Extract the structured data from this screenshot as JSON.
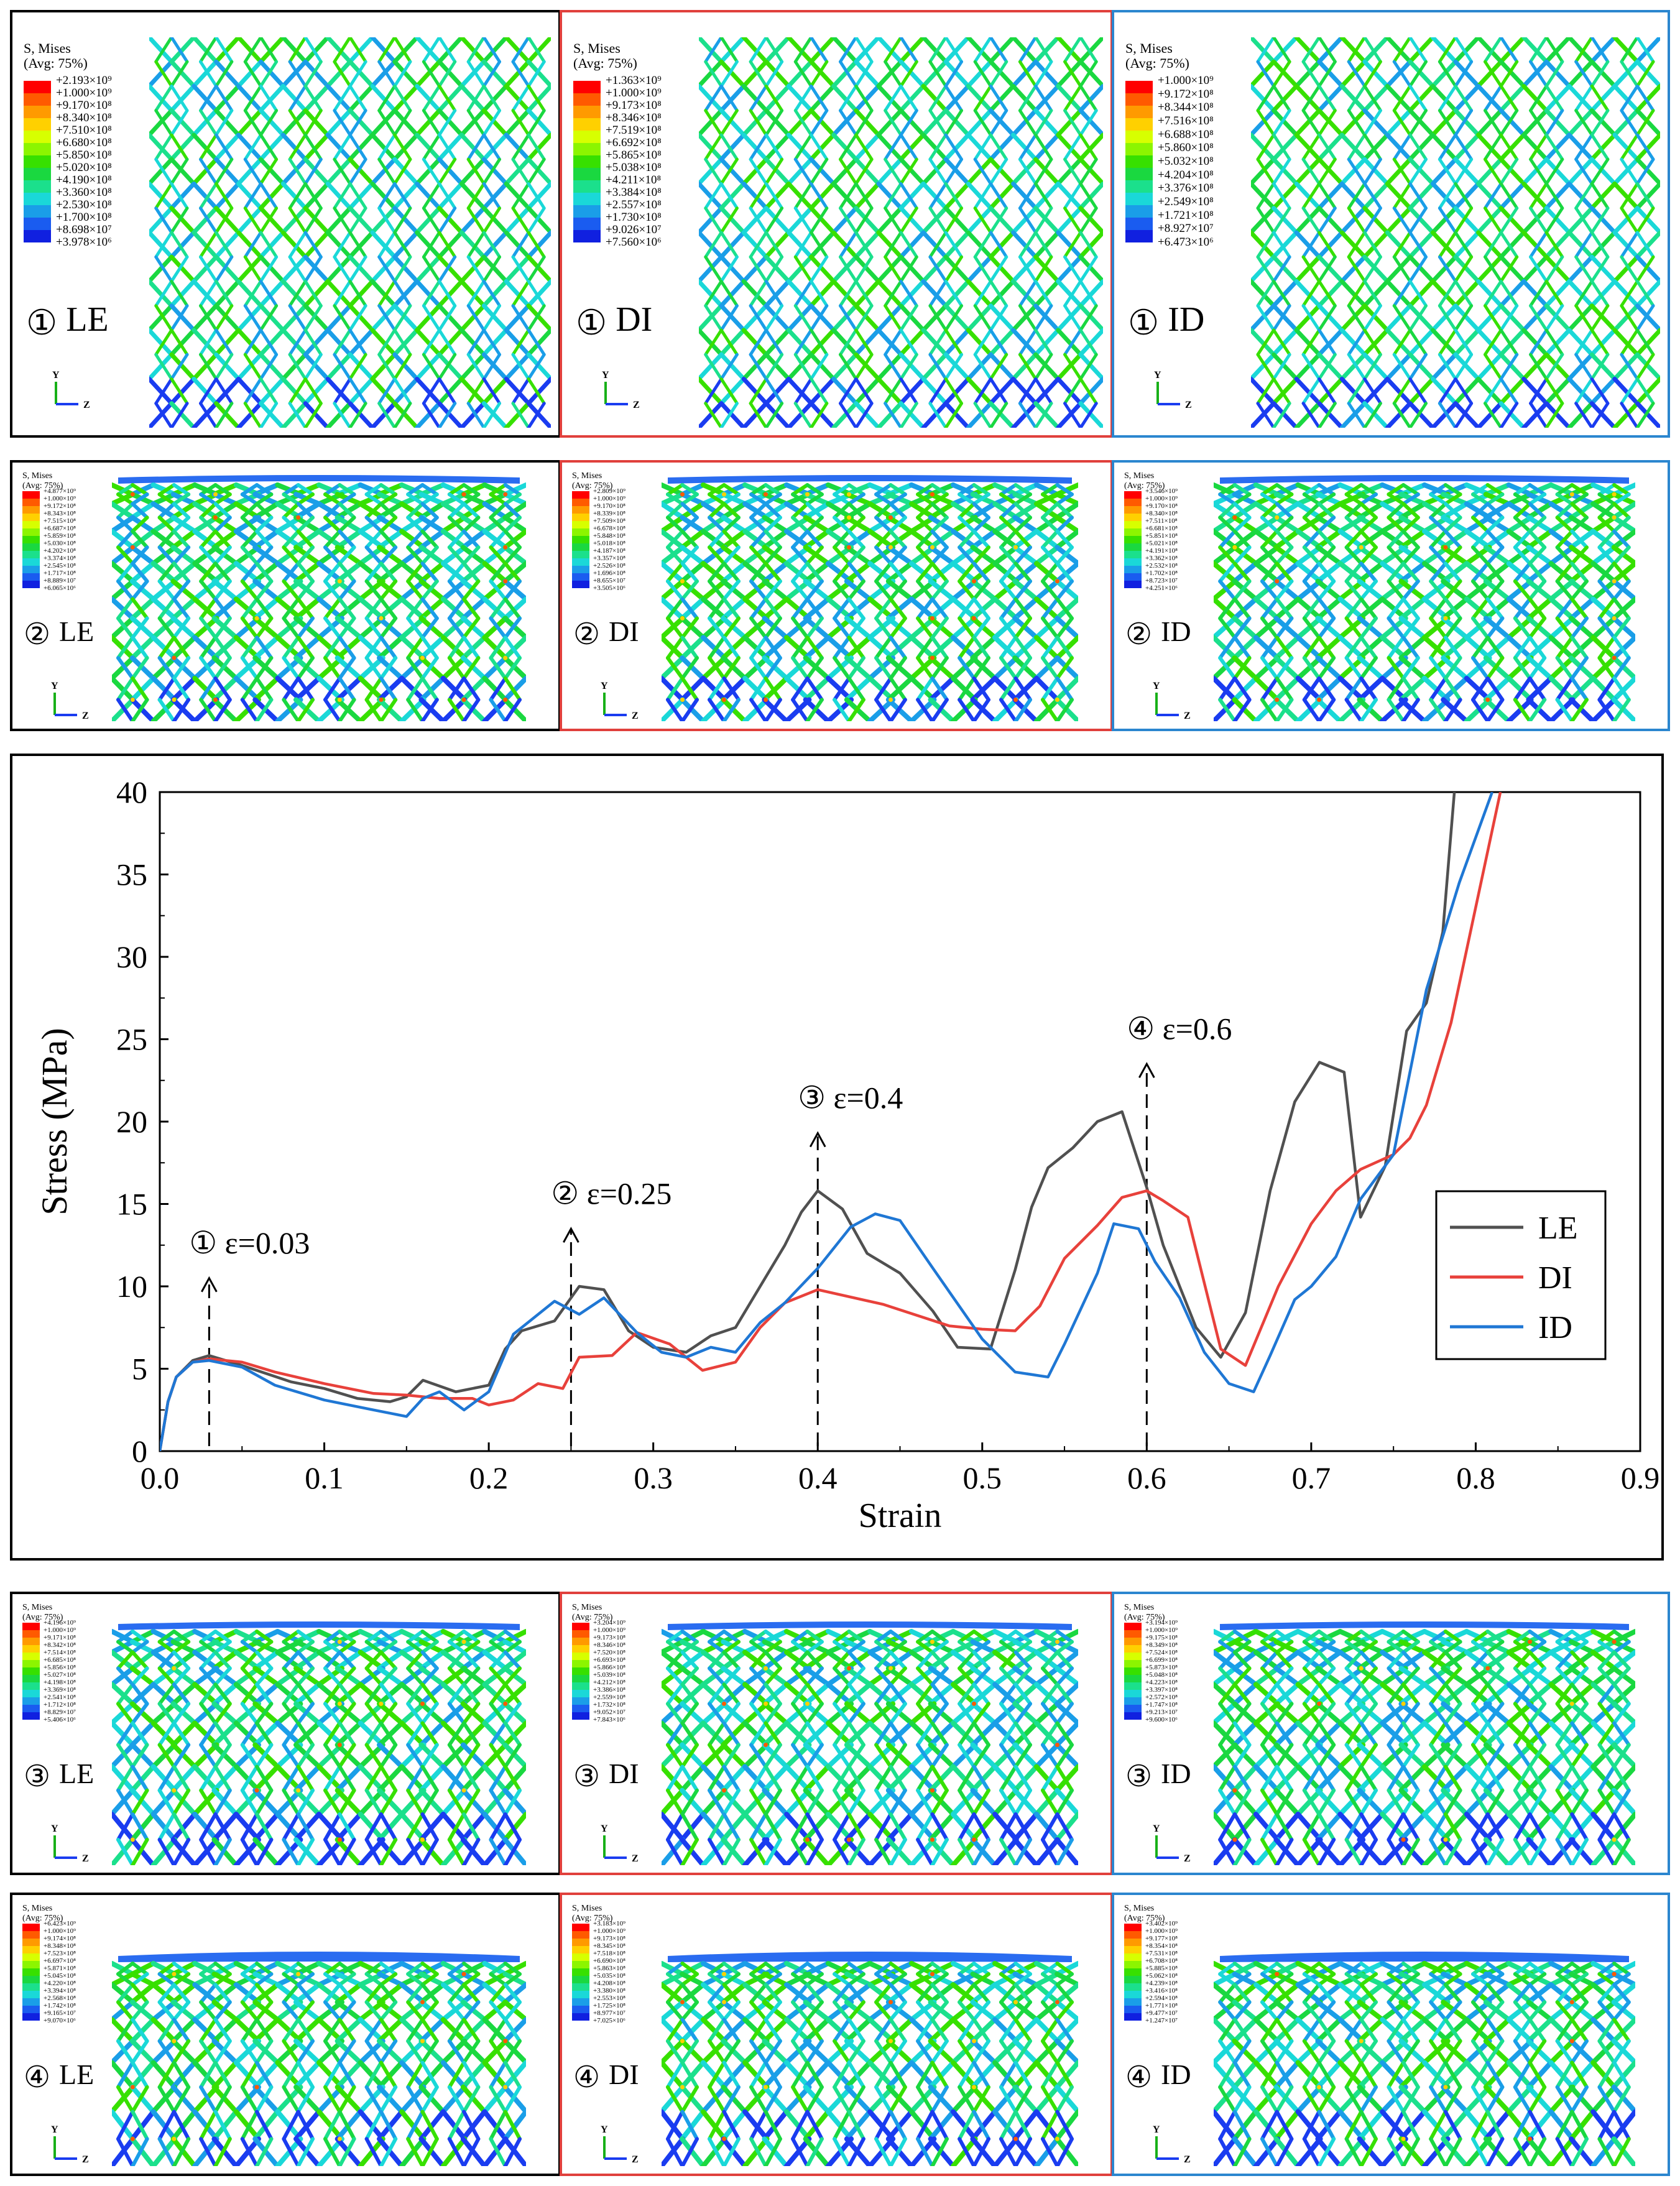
{
  "legend_title_line1": "S, Mises",
  "legend_title_line2": "(Avg: 75%)",
  "axis_y": "Y",
  "axis_z": "Z",
  "colors": {
    "LE": "#505050",
    "DI": "#e8413b",
    "ID": "#1f77d4",
    "panel_LE": "#000000",
    "panel_DI": "#e0403c",
    "panel_ID": "#2b86cf"
  },
  "colorbar_colors": [
    "#ff0000",
    "#ff5a00",
    "#ff9a00",
    "#ffd000",
    "#d7ff00",
    "#8cf500",
    "#37e000",
    "#1ad840",
    "#1be08c",
    "#1ad8d8",
    "#1a9ee8",
    "#1a5cf0",
    "#1020e0"
  ],
  "panels": [
    {
      "state": "①",
      "name": "LE",
      "legend": [
        "+2.193×10⁹",
        "+1.000×10⁹",
        "+9.170×10⁸",
        "+8.340×10⁸",
        "+7.510×10⁸",
        "+6.680×10⁸",
        "+5.850×10⁸",
        "+5.020×10⁸",
        "+4.190×10⁸",
        "+3.360×10⁸",
        "+2.530×10⁸",
        "+1.700×10⁸",
        "+8.698×10⁷",
        "+3.978×10⁶"
      ]
    },
    {
      "state": "①",
      "name": "DI",
      "legend": [
        "+1.363×10⁹",
        "+1.000×10⁹",
        "+9.173×10⁸",
        "+8.346×10⁸",
        "+7.519×10⁸",
        "+6.692×10⁸",
        "+5.865×10⁸",
        "+5.038×10⁸",
        "+4.211×10⁸",
        "+3.384×10⁸",
        "+2.557×10⁸",
        "+1.730×10⁸",
        "+9.026×10⁷",
        "+7.560×10⁶"
      ]
    },
    {
      "state": "①",
      "name": "ID",
      "legend": [
        "+1.000×10⁹",
        "+9.172×10⁸",
        "+8.344×10⁸",
        "+7.516×10⁸",
        "+6.688×10⁸",
        "+5.860×10⁸",
        "+5.032×10⁸",
        "+4.204×10⁸",
        "+3.376×10⁸",
        "+2.549×10⁸",
        "+1.721×10⁸",
        "+8.927×10⁷",
        "+6.473×10⁶"
      ]
    },
    {
      "state": "②",
      "name": "LE",
      "legend": [
        "+4.877×10⁹",
        "+1.000×10⁹",
        "+9.172×10⁸",
        "+8.343×10⁸",
        "+7.515×10⁸",
        "+6.687×10⁸",
        "+5.859×10⁸",
        "+5.030×10⁸",
        "+4.202×10⁸",
        "+3.374×10⁸",
        "+2.545×10⁸",
        "+1.717×10⁸",
        "+8.889×10⁷",
        "+6.065×10⁶"
      ]
    },
    {
      "state": "②",
      "name": "DI",
      "legend": [
        "+2.809×10⁹",
        "+1.000×10⁹",
        "+9.170×10⁸",
        "+8.339×10⁸",
        "+7.509×10⁸",
        "+6.678×10⁸",
        "+5.848×10⁸",
        "+5.018×10⁸",
        "+4.187×10⁸",
        "+3.357×10⁸",
        "+2.526×10⁸",
        "+1.696×10⁸",
        "+8.655×10⁷",
        "+3.505×10⁶"
      ]
    },
    {
      "state": "②",
      "name": "ID",
      "legend": [
        "+3.546×10⁹",
        "+1.000×10⁹",
        "+9.170×10⁸",
        "+8.340×10⁸",
        "+7.511×10⁸",
        "+6.681×10⁸",
        "+5.851×10⁸",
        "+5.021×10⁸",
        "+4.191×10⁸",
        "+3.362×10⁸",
        "+2.532×10⁸",
        "+1.702×10⁸",
        "+8.723×10⁷",
        "+4.251×10⁶"
      ]
    },
    {
      "state": "③",
      "name": "LE",
      "legend": [
        "+4.196×10⁹",
        "+1.000×10⁹",
        "+9.171×10⁸",
        "+8.342×10⁸",
        "+7.514×10⁸",
        "+6.685×10⁸",
        "+5.856×10⁸",
        "+5.027×10⁸",
        "+4.198×10⁸",
        "+3.369×10⁸",
        "+2.541×10⁸",
        "+1.712×10⁸",
        "+8.829×10⁷",
        "+5.406×10⁶"
      ]
    },
    {
      "state": "③",
      "name": "DI",
      "legend": [
        "+3.204×10⁹",
        "+1.000×10⁹",
        "+9.173×10⁸",
        "+8.346×10⁸",
        "+7.520×10⁸",
        "+6.693×10⁸",
        "+5.866×10⁸",
        "+5.039×10⁸",
        "+4.212×10⁸",
        "+3.386×10⁸",
        "+2.559×10⁸",
        "+1.732×10⁸",
        "+9.052×10⁷",
        "+7.843×10⁶"
      ]
    },
    {
      "state": "③",
      "name": "ID",
      "legend": [
        "+3.194×10⁹",
        "+1.000×10⁹",
        "+9.175×10⁸",
        "+8.349×10⁸",
        "+7.524×10⁸",
        "+6.699×10⁸",
        "+5.873×10⁸",
        "+5.048×10⁸",
        "+4.223×10⁸",
        "+3.397×10⁸",
        "+2.572×10⁸",
        "+1.747×10⁸",
        "+9.213×10⁷",
        "+9.600×10⁶"
      ]
    },
    {
      "state": "④",
      "name": "LE",
      "legend": [
        "+6.423×10⁹",
        "+1.000×10⁹",
        "+9.174×10⁸",
        "+8.348×10⁸",
        "+7.523×10⁸",
        "+6.697×10⁸",
        "+5.871×10⁸",
        "+5.045×10⁸",
        "+4.220×10⁸",
        "+3.394×10⁸",
        "+2.568×10⁸",
        "+1.742×10⁸",
        "+9.165×10⁷",
        "+9.070×10⁶"
      ]
    },
    {
      "state": "④",
      "name": "DI",
      "legend": [
        "+3.183×10⁹",
        "+1.000×10⁹",
        "+9.173×10⁸",
        "+8.345×10⁸",
        "+7.518×10⁸",
        "+6.690×10⁸",
        "+5.863×10⁸",
        "+5.035×10⁸",
        "+4.208×10⁸",
        "+3.380×10⁸",
        "+2.553×10⁸",
        "+1.725×10⁸",
        "+8.977×10⁷",
        "+7.025×10⁶"
      ]
    },
    {
      "state": "④",
      "name": "ID",
      "legend": [
        "+3.402×10⁹",
        "+1.000×10⁹",
        "+9.177×10⁸",
        "+8.354×10⁸",
        "+7.531×10⁸",
        "+6.708×10⁸",
        "+5.885×10⁸",
        "+5.062×10⁸",
        "+4.239×10⁸",
        "+3.416×10⁸",
        "+2.594×10⁸",
        "+1.771×10⁸",
        "+9.477×10⁷",
        "+1.247×10⁷"
      ]
    }
  ],
  "chart_data": {
    "type": "line",
    "title": "",
    "xlabel": "Strain",
    "ylabel": "Stress (MPa)",
    "xlim": [
      0,
      0.9
    ],
    "ylim": [
      0,
      40
    ],
    "xticks": [
      "0.0",
      "0.1",
      "0.2",
      "0.3",
      "0.4",
      "0.5",
      "0.6",
      "0.7",
      "0.8",
      "0.9"
    ],
    "yticks": [
      "0",
      "5",
      "10",
      "15",
      "20",
      "25",
      "30",
      "35",
      "40"
    ],
    "legend_position": "right",
    "series": [
      {
        "name": "LE",
        "points": [
          [
            0,
            0
          ],
          [
            0.005,
            3
          ],
          [
            0.01,
            4.5
          ],
          [
            0.02,
            5.5
          ],
          [
            0.03,
            5.8
          ],
          [
            0.05,
            5.2
          ],
          [
            0.08,
            4.2
          ],
          [
            0.1,
            3.8
          ],
          [
            0.12,
            3.2
          ],
          [
            0.14,
            3
          ],
          [
            0.15,
            3.3
          ],
          [
            0.16,
            4.3
          ],
          [
            0.18,
            3.6
          ],
          [
            0.2,
            4
          ],
          [
            0.21,
            6.2
          ],
          [
            0.22,
            7.3
          ],
          [
            0.24,
            7.9
          ],
          [
            0.255,
            10
          ],
          [
            0.27,
            9.8
          ],
          [
            0.285,
            7.3
          ],
          [
            0.3,
            6.3
          ],
          [
            0.32,
            6
          ],
          [
            0.335,
            7
          ],
          [
            0.35,
            7.5
          ],
          [
            0.365,
            10
          ],
          [
            0.38,
            12.5
          ],
          [
            0.39,
            14.5
          ],
          [
            0.4,
            15.8
          ],
          [
            0.415,
            14.7
          ],
          [
            0.43,
            12
          ],
          [
            0.45,
            10.8
          ],
          [
            0.47,
            8.5
          ],
          [
            0.485,
            6.3
          ],
          [
            0.505,
            6.2
          ],
          [
            0.52,
            11
          ],
          [
            0.53,
            14.8
          ],
          [
            0.54,
            17.2
          ],
          [
            0.555,
            18.4
          ],
          [
            0.57,
            20
          ],
          [
            0.585,
            20.6
          ],
          [
            0.6,
            16
          ],
          [
            0.61,
            12.5
          ],
          [
            0.63,
            7.5
          ],
          [
            0.645,
            5.7
          ],
          [
            0.66,
            8.4
          ],
          [
            0.675,
            15.8
          ],
          [
            0.69,
            21.2
          ],
          [
            0.705,
            23.6
          ],
          [
            0.72,
            23
          ],
          [
            0.73,
            14.2
          ],
          [
            0.745,
            17.3
          ],
          [
            0.758,
            25.5
          ],
          [
            0.77,
            27.2
          ],
          [
            0.78,
            31.5
          ],
          [
            0.787,
            40
          ]
        ]
      },
      {
        "name": "DI",
        "points": [
          [
            0,
            0
          ],
          [
            0.005,
            3
          ],
          [
            0.01,
            4.5
          ],
          [
            0.02,
            5.4
          ],
          [
            0.03,
            5.6
          ],
          [
            0.05,
            5.4
          ],
          [
            0.07,
            4.8
          ],
          [
            0.1,
            4.1
          ],
          [
            0.13,
            3.5
          ],
          [
            0.15,
            3.4
          ],
          [
            0.17,
            3.2
          ],
          [
            0.19,
            3.2
          ],
          [
            0.2,
            2.8
          ],
          [
            0.215,
            3.1
          ],
          [
            0.23,
            4.1
          ],
          [
            0.245,
            3.8
          ],
          [
            0.255,
            5.7
          ],
          [
            0.275,
            5.8
          ],
          [
            0.29,
            7.2
          ],
          [
            0.31,
            6.5
          ],
          [
            0.33,
            4.9
          ],
          [
            0.35,
            5.4
          ],
          [
            0.365,
            7.5
          ],
          [
            0.38,
            9
          ],
          [
            0.4,
            9.8
          ],
          [
            0.44,
            8.9
          ],
          [
            0.48,
            7.6
          ],
          [
            0.5,
            7.4
          ],
          [
            0.52,
            7.3
          ],
          [
            0.535,
            8.8
          ],
          [
            0.55,
            11.7
          ],
          [
            0.57,
            13.7
          ],
          [
            0.585,
            15.4
          ],
          [
            0.6,
            15.8
          ],
          [
            0.61,
            15.2
          ],
          [
            0.625,
            14.2
          ],
          [
            0.645,
            6.2
          ],
          [
            0.66,
            5.2
          ],
          [
            0.68,
            10
          ],
          [
            0.7,
            13.8
          ],
          [
            0.715,
            15.8
          ],
          [
            0.73,
            17.1
          ],
          [
            0.75,
            18
          ],
          [
            0.76,
            19
          ],
          [
            0.77,
            21
          ],
          [
            0.785,
            26
          ],
          [
            0.8,
            33
          ],
          [
            0.815,
            40
          ]
        ]
      },
      {
        "name": "ID",
        "points": [
          [
            0,
            0
          ],
          [
            0.005,
            3
          ],
          [
            0.01,
            4.5
          ],
          [
            0.02,
            5.4
          ],
          [
            0.03,
            5.5
          ],
          [
            0.05,
            5.1
          ],
          [
            0.07,
            4
          ],
          [
            0.1,
            3.1
          ],
          [
            0.13,
            2.5
          ],
          [
            0.15,
            2.1
          ],
          [
            0.16,
            3.2
          ],
          [
            0.17,
            3.6
          ],
          [
            0.185,
            2.5
          ],
          [
            0.2,
            3.6
          ],
          [
            0.215,
            7.1
          ],
          [
            0.24,
            9.1
          ],
          [
            0.255,
            8.3
          ],
          [
            0.27,
            9.3
          ],
          [
            0.29,
            7.2
          ],
          [
            0.305,
            6
          ],
          [
            0.32,
            5.7
          ],
          [
            0.335,
            6.3
          ],
          [
            0.35,
            6
          ],
          [
            0.365,
            7.8
          ],
          [
            0.38,
            9
          ],
          [
            0.4,
            11.1
          ],
          [
            0.42,
            13.6
          ],
          [
            0.435,
            14.4
          ],
          [
            0.45,
            14
          ],
          [
            0.47,
            11.1
          ],
          [
            0.5,
            6.8
          ],
          [
            0.52,
            4.8
          ],
          [
            0.54,
            4.5
          ],
          [
            0.55,
            6.5
          ],
          [
            0.57,
            10.8
          ],
          [
            0.58,
            13.8
          ],
          [
            0.595,
            13.5
          ],
          [
            0.605,
            11.5
          ],
          [
            0.62,
            9.3
          ],
          [
            0.635,
            6
          ],
          [
            0.65,
            4.1
          ],
          [
            0.665,
            3.6
          ],
          [
            0.675,
            5.8
          ],
          [
            0.69,
            9.2
          ],
          [
            0.7,
            10
          ],
          [
            0.715,
            11.8
          ],
          [
            0.73,
            15.3
          ],
          [
            0.75,
            18
          ],
          [
            0.77,
            28
          ],
          [
            0.79,
            34.5
          ],
          [
            0.81,
            40
          ]
        ]
      }
    ],
    "annotations": [
      {
        "label": "① ε=0.03",
        "x": 0.03,
        "y_start": 0.3,
        "y_end": 10.5
      },
      {
        "label": "② ε=0.25",
        "x": 0.25,
        "y_start": 0.3,
        "y_end": 13.5
      },
      {
        "label": "③ ε=0.4",
        "x": 0.4,
        "y_start": 0.3,
        "y_end": 19.3
      },
      {
        "label": "④ ε=0.6",
        "x": 0.6,
        "y_start": 0.3,
        "y_end": 23.5
      }
    ]
  }
}
